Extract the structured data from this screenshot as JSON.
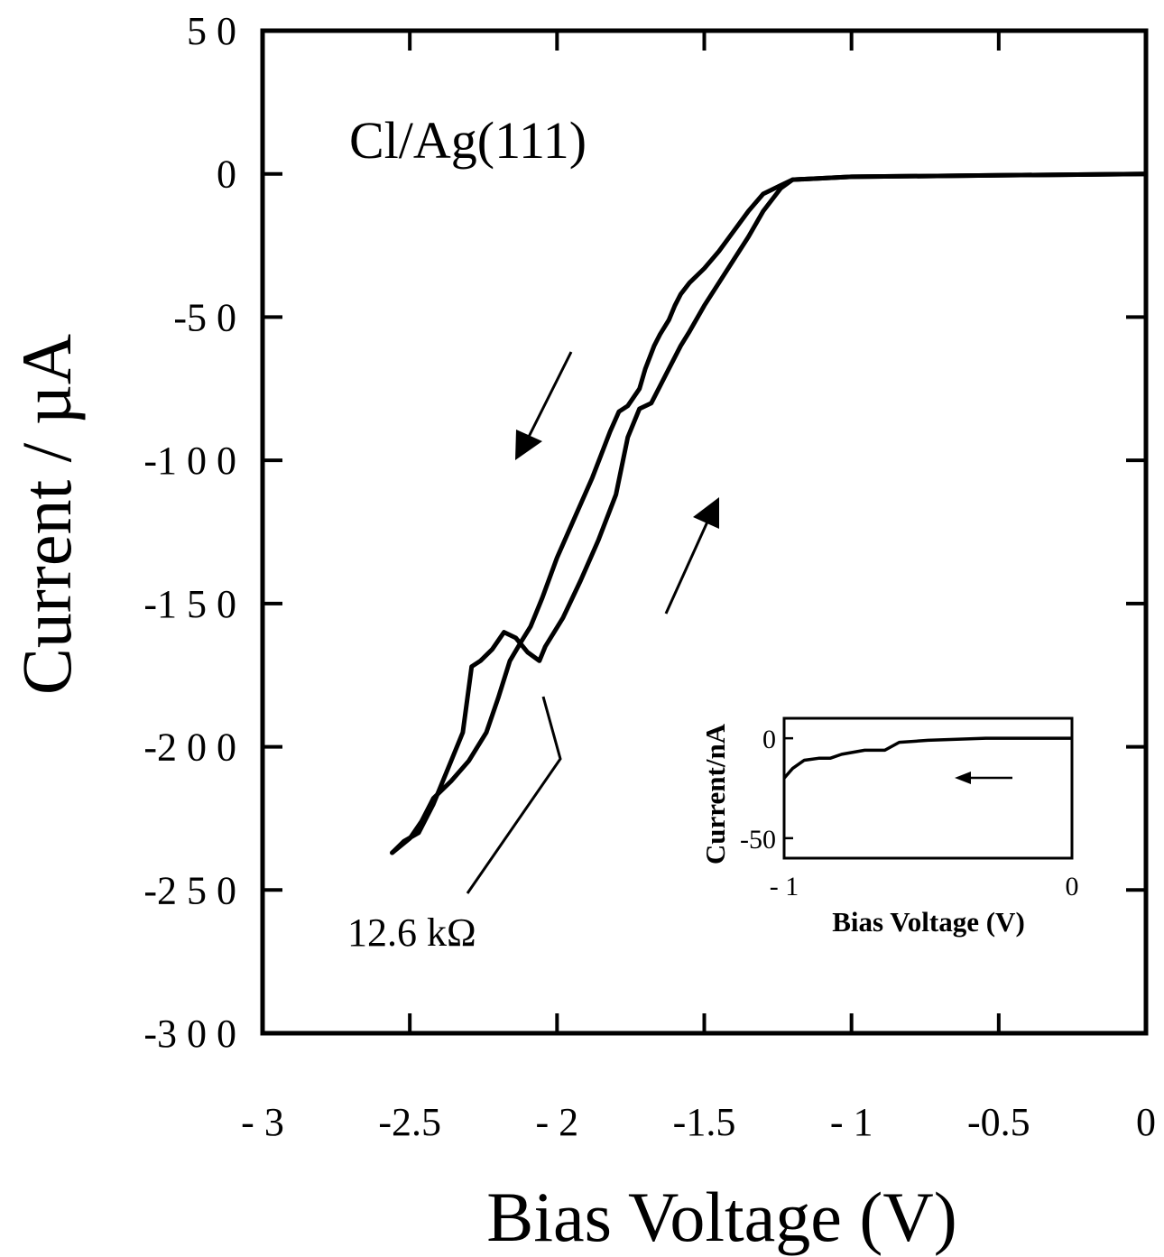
{
  "chart_data": [
    {
      "type": "line",
      "title": "",
      "xlabel": "Bias Voltage (V)",
      "ylabel": "Current / µA",
      "xlim": [
        -3,
        0
      ],
      "ylim": [
        -300,
        50
      ],
      "x_ticks": [
        -3,
        -2.5,
        -2,
        -1.5,
        -1,
        -0.5,
        0
      ],
      "x_tick_labels": [
        "- 3",
        "-2.5",
        "- 2",
        "-1.5",
        "- 1",
        "-0.5",
        "0"
      ],
      "y_ticks": [
        50,
        0,
        -50,
        -100,
        -150,
        -200,
        -250,
        -300
      ],
      "y_tick_labels": [
        "5 0",
        "0",
        "-5 0",
        "-1 0 0",
        "-1 5 0",
        "-2 0 0",
        "-2 5 0",
        "-3 0 0"
      ],
      "grid": false,
      "annotations": [
        {
          "text": "Cl/Ag(111)"
        },
        {
          "text": "12.6  kΩ"
        }
      ],
      "series": [
        {
          "x": [
            0,
            -0.5,
            -1.0,
            -1.2,
            -1.24,
            -1.3,
            -1.35,
            -1.4,
            -1.45,
            -1.5,
            -1.55,
            -1.58,
            -1.63,
            -1.68,
            -1.72,
            -1.76,
            -1.8,
            -1.86,
            -1.92,
            -1.98,
            -2.04,
            -2.06,
            -2.1,
            -2.14,
            -2.18,
            -2.22,
            -2.26,
            -2.29,
            -2.32,
            -2.36,
            -2.42,
            -2.47,
            -2.52,
            -2.56
          ],
          "y": [
            0,
            -0.5,
            -1,
            -2,
            -5,
            -13,
            -22,
            -30,
            -38,
            -46,
            -55,
            -60,
            -70,
            -80,
            -82,
            -92,
            -112,
            -128,
            -142,
            -155,
            -165,
            -170,
            -167,
            -162,
            -160,
            -166,
            -170,
            -172,
            -195,
            -205,
            -220,
            -230,
            -233,
            -237
          ]
        },
        {
          "x": [
            -2.56,
            -2.5,
            -2.46,
            -2.42,
            -2.36,
            -2.3,
            -2.24,
            -2.2,
            -2.16,
            -2.12,
            -2.09,
            -2.05,
            -2.0,
            -1.94,
            -1.88,
            -1.82,
            -1.79,
            -1.76,
            -1.72,
            -1.7,
            -1.67,
            -1.65,
            -1.62,
            -1.6,
            -1.58,
            -1.55,
            -1.5,
            -1.45,
            -1.4,
            -1.35,
            -1.3,
            -1.24,
            -1.2,
            -1.0,
            -0.5,
            0
          ],
          "y": [
            -237,
            -232,
            -226,
            -218,
            -212,
            -205,
            -195,
            -183,
            -170,
            -163,
            -158,
            -148,
            -134,
            -120,
            -106,
            -90,
            -83,
            -81,
            -75,
            -68,
            -60,
            -56,
            -51,
            -46,
            -42,
            -38,
            -33,
            -27,
            -20,
            -13,
            -7,
            -4,
            -2,
            -1,
            -0.5,
            0
          ]
        }
      ]
    },
    {
      "type": "line",
      "title": "",
      "xlabel": "Bias Voltage (V)",
      "ylabel": "Current/nA",
      "xlim": [
        -1,
        0
      ],
      "ylim": [
        -60,
        10
      ],
      "x_tick_labels": [
        "- 1",
        "0"
      ],
      "y_tick_labels": [
        "0",
        "-50"
      ],
      "series": [
        {
          "x": [
            -1.0,
            -0.97,
            -0.93,
            -0.88,
            -0.84,
            -0.8,
            -0.72,
            -0.65,
            -0.6,
            -0.5,
            -0.4,
            -0.3,
            -0.2,
            -0.1,
            0
          ],
          "y": [
            -20,
            -15,
            -11,
            -10,
            -10,
            -8,
            -6,
            -6,
            -2,
            -1,
            -0.5,
            0,
            0,
            0,
            0
          ]
        }
      ]
    }
  ]
}
